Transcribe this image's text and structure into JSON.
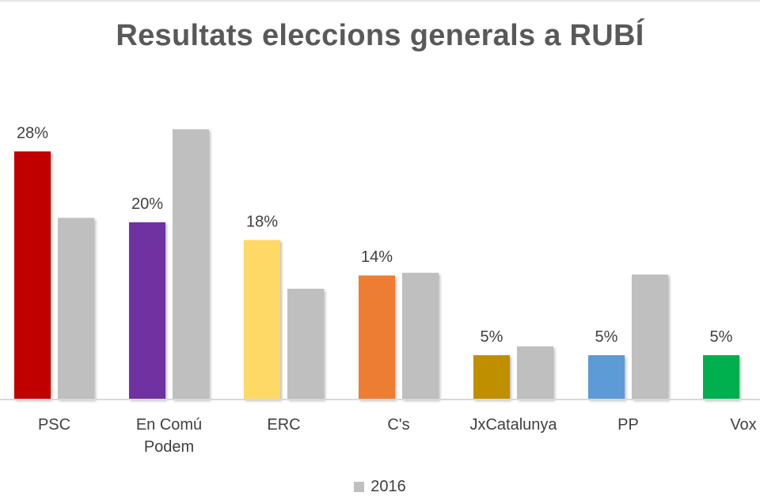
{
  "chart_data": {
    "type": "bar",
    "title": "Resultats eleccions generals a RUBÍ",
    "categories": [
      "PSC",
      "En Comú Podem",
      "ERC",
      "C's",
      "JxCatalunya",
      "PP",
      "Vox"
    ],
    "category_lines": [
      [
        "PSC"
      ],
      [
        "En Comú",
        "Podem"
      ],
      [
        "ERC"
      ],
      [
        "C's"
      ],
      [
        "JxCatalunya"
      ],
      [
        "PP"
      ],
      [
        "Vox"
      ]
    ],
    "series": [
      {
        "values": [
          28,
          20,
          18,
          14,
          5,
          5,
          5
        ],
        "labels": [
          "28%",
          "20%",
          "18%",
          "14%",
          "5%",
          "5%",
          "5%"
        ],
        "colors": [
          "#c00000",
          "#7030a0",
          "#ffd966",
          "#ed7d31",
          "#bf8f00",
          "#5b9bd5",
          "#00b050"
        ]
      },
      {
        "name": "2016",
        "values": [
          20.5,
          30.5,
          12.5,
          14.3,
          6.0,
          14.1,
          null
        ],
        "color": "#bfbfbf"
      }
    ],
    "ylim": [
      0,
      31
    ],
    "xlabel": "",
    "ylabel": "",
    "grid": false,
    "legend": "bottom"
  },
  "legend": {
    "label": "2016"
  }
}
